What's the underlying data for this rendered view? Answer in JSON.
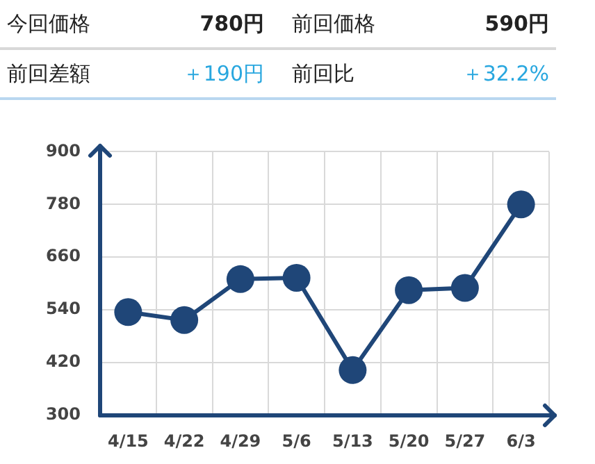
{
  "chart_data": [
    {
      "type": "other",
      "annotations": [
        "今回価格",
        "780円",
        "前回価格",
        "590円",
        "前回差額",
        "＋190円",
        "前回比",
        "＋32.2%"
      ]
    },
    {
      "type": "line",
      "categories": [
        "4/15",
        "4/22",
        "4/29",
        "5/6",
        "5/13",
        "5/20",
        "5/27",
        "6/3"
      ],
      "series": [
        {
          "color": "#1f4678",
          "values": [
            535,
            517,
            610,
            613,
            403,
            585,
            590,
            780
          ]
        }
      ],
      "ylim": [
        300,
        900
      ],
      "yticks": [
        300,
        420,
        540,
        660,
        780,
        900
      ],
      "grid": true,
      "legend": false,
      "marker": "circle",
      "line_style": "solid"
    }
  ]
}
